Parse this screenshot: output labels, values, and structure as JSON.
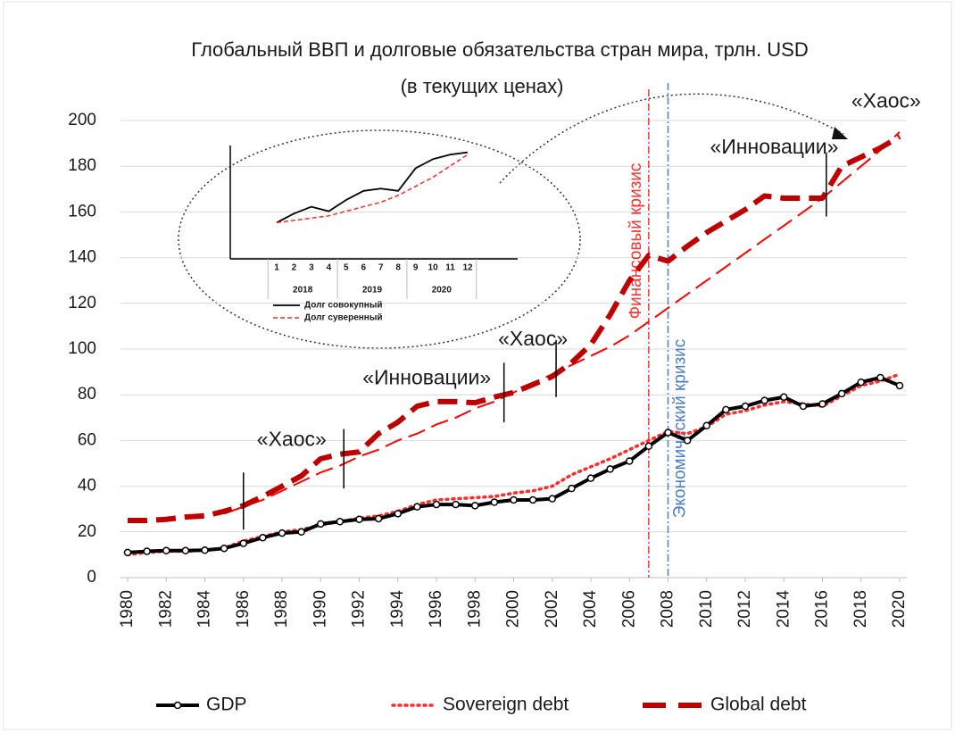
{
  "chart_data": {
    "type": "line",
    "title": "Глобальный ВВП и долговые обязательства стран мира, трлн. USD",
    "subtitle": "(в текущих ценах)",
    "x": [
      1980,
      1981,
      1982,
      1983,
      1984,
      1985,
      1986,
      1987,
      1988,
      1989,
      1990,
      1991,
      1992,
      1993,
      1994,
      1995,
      1996,
      1997,
      1998,
      1999,
      2000,
      2001,
      2002,
      2003,
      2004,
      2005,
      2006,
      2007,
      2008,
      2009,
      2010,
      2011,
      2012,
      2013,
      2014,
      2015,
      2016,
      2017,
      2018,
      2019,
      2020
    ],
    "xlim": [
      1980,
      2020
    ],
    "xticks": [
      1980,
      1982,
      1984,
      1986,
      1988,
      1990,
      1992,
      1994,
      1996,
      1998,
      2000,
      2002,
      2004,
      2006,
      2008,
      2010,
      2012,
      2014,
      2016,
      2018,
      2020
    ],
    "ylim": [
      0,
      200
    ],
    "yticks": [
      0,
      20,
      40,
      60,
      80,
      100,
      120,
      140,
      160,
      180,
      200
    ],
    "series": [
      {
        "name": "GDP",
        "color": "#000000",
        "style": "solid",
        "markers": true,
        "values": [
          11,
          11.5,
          11.8,
          11.8,
          12,
          12.8,
          15,
          17.5,
          19.5,
          20,
          23.5,
          24.5,
          25.5,
          25.8,
          28,
          31,
          32,
          32,
          31.5,
          33,
          34,
          34,
          34.5,
          39,
          43.5,
          47.5,
          51,
          57.5,
          63.5,
          60,
          66.5,
          73.5,
          75,
          77.5,
          79,
          75,
          76,
          80.5,
          85.5,
          87.5,
          84
        ]
      },
      {
        "name": "Sovereign debt",
        "color": "#ff2a2a",
        "style": "dotted",
        "markers": false,
        "values": [
          10,
          11,
          11.5,
          11.5,
          12,
          13,
          16,
          18,
          20,
          21,
          23,
          24.5,
          26,
          27,
          29,
          32,
          34,
          34.5,
          35,
          35.5,
          37,
          38,
          40,
          45,
          48.5,
          52,
          56,
          60,
          64,
          63,
          66,
          71.5,
          73,
          75.5,
          77,
          76,
          75,
          79.5,
          84,
          86,
          89
        ]
      },
      {
        "name": "Global debt",
        "color": "#c00000",
        "style": "dashed",
        "markers": false,
        "values": [
          25,
          25,
          25.5,
          26.5,
          27,
          29,
          31.5,
          35.5,
          40,
          44.5,
          52,
          54,
          55,
          63,
          68,
          75,
          77,
          77,
          76.5,
          79,
          81,
          84.5,
          88,
          94,
          102,
          115,
          130,
          141,
          138.5,
          145,
          151,
          156,
          161,
          167,
          166,
          166,
          166,
          180,
          184,
          188,
          193
        ]
      },
      {
        "color": "#ff0000",
        "style": "trend",
        "markers": false,
        "values": [
          null,
          null,
          null,
          null,
          null,
          28,
          31,
          34,
          38,
          42,
          46,
          49,
          53,
          56,
          60,
          63,
          67,
          70,
          74,
          77,
          81,
          85,
          89,
          93,
          97,
          101,
          106,
          112,
          118,
          124,
          130,
          136,
          142,
          148,
          154,
          160,
          166,
          173,
          180,
          187,
          195
        ]
      }
    ],
    "crises": [
      {
        "x": 2007,
        "label": "Финансовый кризис",
        "color": "#ff3030"
      },
      {
        "x": 2008,
        "label": "Экономический кризис",
        "color": "#4a7ec9"
      }
    ],
    "annotations": [
      {
        "text": "«Хаос»",
        "x": 1988.5,
        "y": 60
      },
      {
        "text": "«Инновации»",
        "x": 1995.5,
        "y": 87
      },
      {
        "text": "«Хаос»",
        "x": 2001,
        "y": 104
      },
      {
        "text": "«Инновации»",
        "x": 2013.5,
        "y": 188
      },
      {
        "text": "«Хаос»",
        "x": 2019.3,
        "y": 208
      }
    ],
    "markers": [
      {
        "x": 1986,
        "y": [
          21,
          46
        ]
      },
      {
        "x": 1991.2,
        "y": [
          39,
          65
        ]
      },
      {
        "x": 1999.5,
        "y": [
          68,
          94
        ]
      },
      {
        "x": 2002.2,
        "y": [
          79,
          104
        ]
      },
      {
        "x": 2016.2,
        "y": [
          158,
          186
        ]
      }
    ],
    "inset": {
      "x": [
        1,
        2,
        3,
        4,
        5,
        6,
        7,
        8,
        9,
        10,
        11,
        12
      ],
      "xlim": [
        1,
        12
      ],
      "ylim": [
        140,
        190
      ],
      "groups": [
        "2018",
        "2019",
        "2020"
      ],
      "series": [
        {
          "name": "Долг совокупный",
          "color": "#000000",
          "style": "solid",
          "values": [
            156,
            160,
            163,
            161,
            166,
            170,
            171,
            170,
            180,
            184,
            186,
            187
          ]
        },
        {
          "name": "Долг суверенный",
          "color": "#ff2a2a",
          "style": "dashed",
          "values": [
            156,
            157,
            158,
            159,
            161,
            163,
            165,
            168,
            172,
            176,
            181,
            186
          ]
        }
      ]
    }
  }
}
